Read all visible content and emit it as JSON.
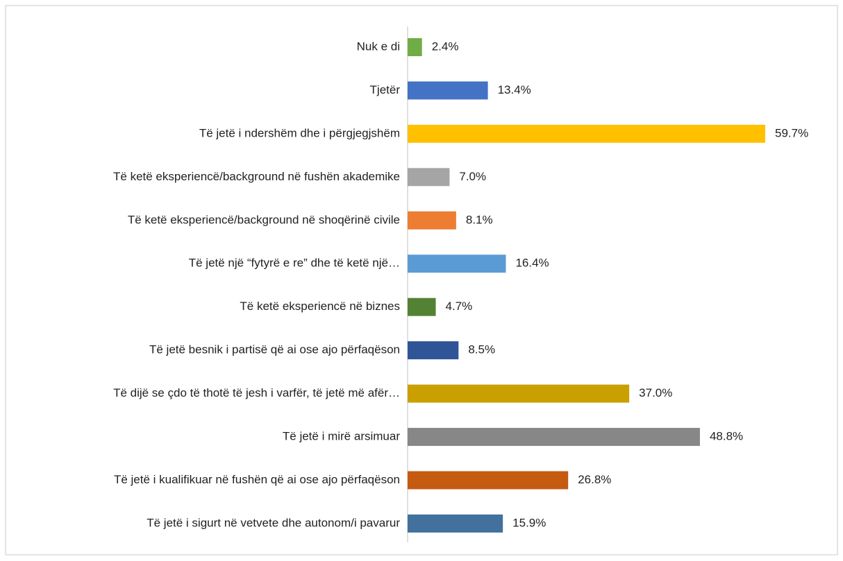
{
  "chart_data": {
    "type": "bar",
    "orientation": "horizontal",
    "categories": [
      "Nuk e di",
      "Tjetër",
      "Të jetë i ndershëm dhe i përgjegjshëm",
      "Të ketë eksperiencë/background në fushën akademike",
      "Të ketë eksperiencë/background në shoqërinë civile",
      "Të jetë një “fytyrë e re” dhe të ketë një…",
      "Të ketë eksperiencë në biznes",
      "Të jetë besnik i partisë që ai ose ajo përfaqëson",
      "Të dijë se çdo të thotë të jesh i varfër, të jetë më afër…",
      "Të jetë i mirë arsimuar",
      "Të jetë i kualifikuar në fushën që ai ose ajo përfaqëson",
      "Të jetë i sigurt në vetvete dhe autonom/i pavarur"
    ],
    "values": [
      2.4,
      13.4,
      59.7,
      7.0,
      8.1,
      16.4,
      4.7,
      8.5,
      37.0,
      48.8,
      26.8,
      15.9
    ],
    "value_labels": [
      "2.4%",
      "13.4%",
      "59.7%",
      "7.0%",
      "8.1%",
      "16.4%",
      "4.7%",
      "8.5%",
      "37.0%",
      "48.8%",
      "26.8%",
      "15.9%"
    ],
    "colors": [
      "#70ad47",
      "#4472c4",
      "#ffc000",
      "#a5a5a5",
      "#ed7d31",
      "#5b9bd5",
      "#548235",
      "#2f5597",
      "#c9a000",
      "#878787",
      "#c55a11",
      "#41719c"
    ]
  }
}
